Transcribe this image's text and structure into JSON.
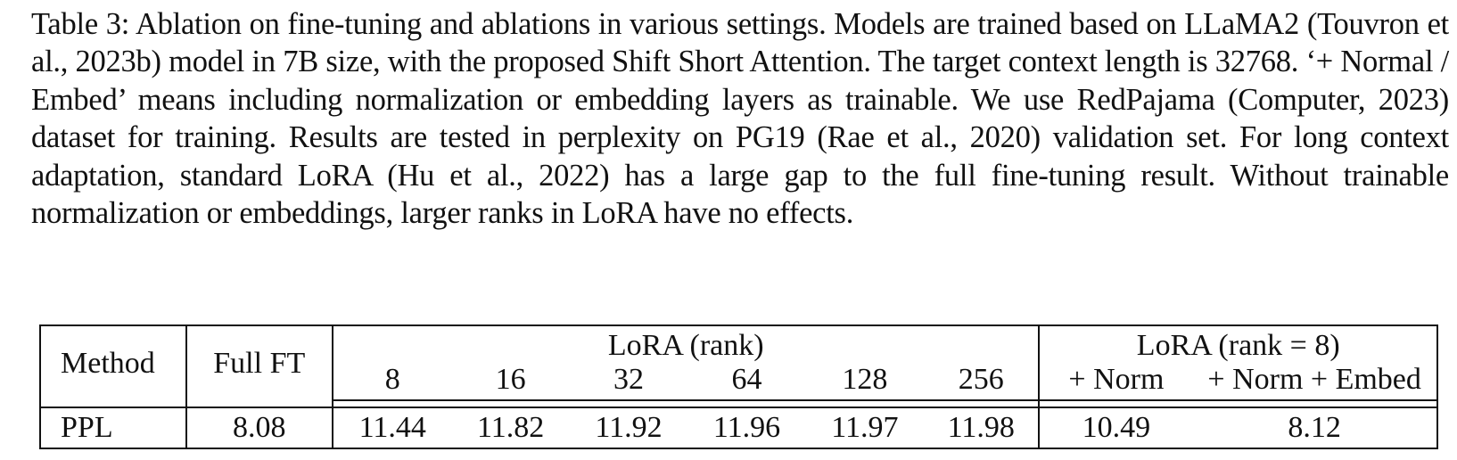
{
  "caption": "Table 3: Ablation on fine-tuning and ablations in various settings. Models are trained based on LLaMA2 (Touvron et al., 2023b) model in 7B size, with the proposed Shift Short Attention. The target context length is 32768. ‘+ Normal / Embed’ means including normalization or embedding layers as trainable. We use RedPajama (Computer, 2023) dataset for training. Results are tested in perplexity on PG19 (Rae et al., 2020) validation set. For long context adaptation, standard LoRA (Hu et al., 2022) has a large gap to the full fine-tuning result. Without trainable normalization or embeddings, larger ranks in LoRA have no effects.",
  "table": {
    "header": {
      "method": "Method",
      "full_ft": "Full FT",
      "lora_group": "LoRA (rank)",
      "lora_ranks": [
        "8",
        "16",
        "32",
        "64",
        "128",
        "256"
      ],
      "lora8_group": "LoRA (rank = 8)",
      "lora8_cols": [
        "+ Norm",
        "+ Norm + Embed"
      ]
    },
    "row": {
      "label": "PPL",
      "full_ft": "8.08",
      "lora": [
        "11.44",
        "11.82",
        "11.92",
        "11.96",
        "11.97",
        "11.98"
      ],
      "lora8": [
        "10.49",
        "8.12"
      ]
    }
  }
}
